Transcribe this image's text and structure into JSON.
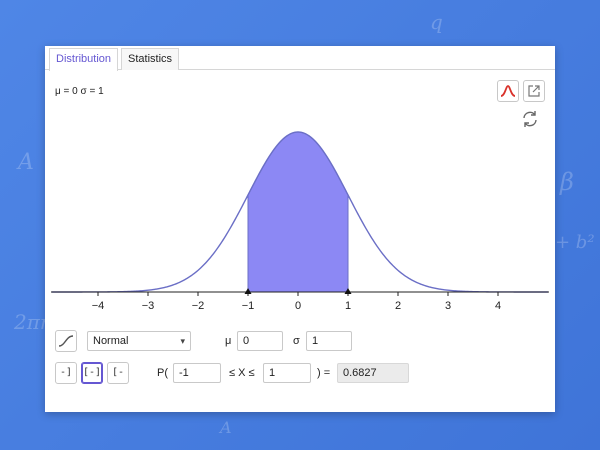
{
  "tabs": [
    {
      "label": "Distribution",
      "active": true
    },
    {
      "label": "Statistics",
      "active": false
    }
  ],
  "params_text": "μ = 0  σ = 1",
  "colors": {
    "accent": "#6557d2",
    "fill": "#8c88f4",
    "curve": "#6b6fc6",
    "background": "#4a7fe0",
    "pdf_icon": "#d9322b"
  },
  "icons": {
    "pdf": "bell-curve-icon",
    "export": "external-link-icon",
    "swap": "swap-icon",
    "cumulative": "cumulative-icon"
  },
  "controls": {
    "distribution": "Normal",
    "mu_label": "μ",
    "mu_value": "0",
    "sigma_label": "σ",
    "sigma_value": "1",
    "prob_prefix": "P(",
    "lower": "-1",
    "middle": "≤ X ≤",
    "upper": "1",
    "equals": ") =",
    "result": "0.6827",
    "interval_buttons": [
      "-]",
      "[-]",
      "[-"
    ],
    "interval_selected": 1
  },
  "chart_data": {
    "type": "area",
    "function": "normal pdf",
    "mu": 0,
    "sigma": 1,
    "xlim": [
      -5,
      5
    ],
    "shaded_interval": [
      -1,
      1
    ],
    "x_ticks": [
      -4,
      -3,
      -2,
      -1,
      0,
      1,
      2,
      3,
      4
    ],
    "tick_labels": [
      "−4",
      "−3",
      "−2",
      "−1",
      "0",
      "1",
      "2",
      "3",
      "4"
    ],
    "marker_points": [
      -1,
      1
    ],
    "grid": false
  }
}
